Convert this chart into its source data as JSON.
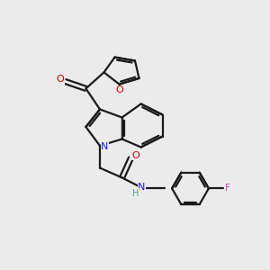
{
  "bg_color": "#ebebeb",
  "bond_color": "#1a1a1a",
  "N_color": "#1919ff",
  "O_color": "#dd0000",
  "F_color": "#cc44cc",
  "H_color": "#559999",
  "figsize": [
    3.0,
    3.0
  ],
  "dpi": 100,
  "xlim": [
    0,
    10
  ],
  "ylim": [
    0,
    10
  ]
}
